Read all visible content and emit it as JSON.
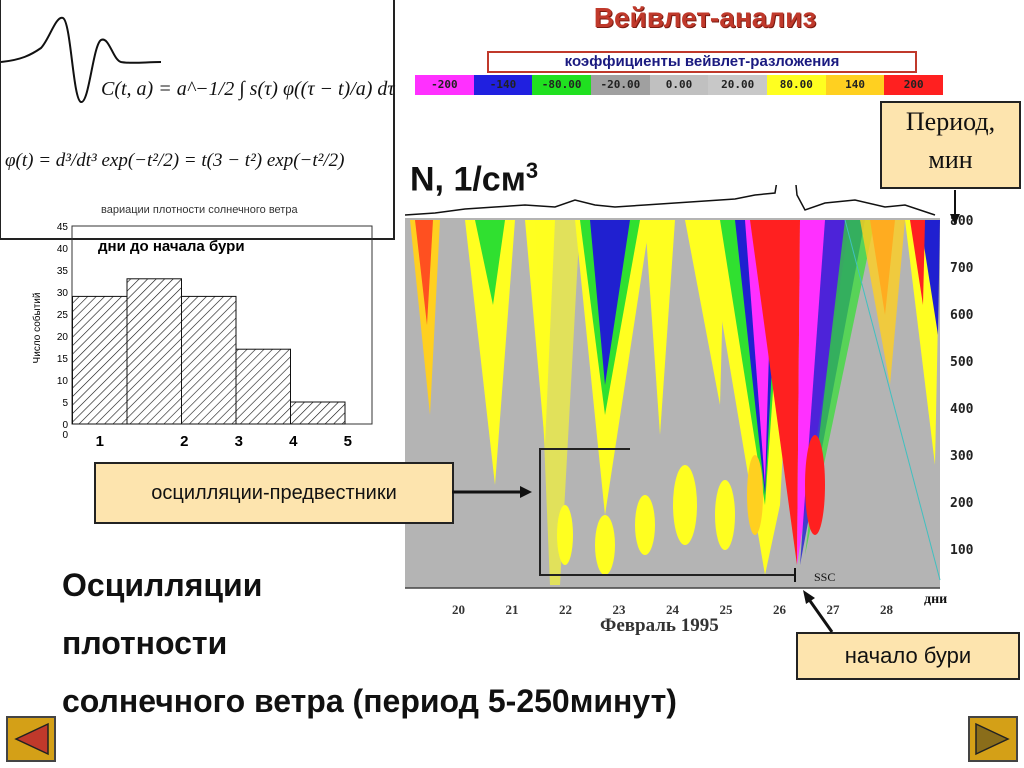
{
  "slide": {
    "title": "Вейвлет-анализ",
    "coef_label": "коэффициенты вейвлет-разложения",
    "scale": [
      {
        "label": "-200",
        "color": "#ff30ff"
      },
      {
        "label": "-140",
        "color": "#2020e0"
      },
      {
        "label": "-80.00",
        "color": "#20e020"
      },
      {
        "label": "-20.00",
        "color": "#a0a0a0"
      },
      {
        "label": "0.00",
        "color": "#c0c0c0"
      },
      {
        "label": "20.00",
        "color": "#c8c8c8"
      },
      {
        "label": "80.00",
        "color": "#ffff20"
      },
      {
        "label": "140",
        "color": "#ffd020"
      },
      {
        "label": "200",
        "color": "#ff2020"
      }
    ],
    "formulas": {
      "transform": "C(t, a) = a^−1/2 ∫ s(τ) φ((τ − t)/a) dτ",
      "wavelet": "φ(t) = d³/dt³ exp(−t²/2) = t(3 − t²) exp(−t²/2)"
    },
    "wind_caption": "вариации плотности солнечного ветра",
    "histogram": {
      "title": "дни до начала бури",
      "ylabel": "Число событий",
      "yticks": [
        "45",
        "40",
        "35",
        "30",
        "25",
        "20",
        "15",
        "10",
        "5",
        "0"
      ],
      "xzero": "0",
      "categories": [
        "1",
        "2",
        "3",
        "4",
        "5"
      ],
      "values": [
        29,
        33,
        29,
        17,
        5
      ],
      "ylim": [
        0,
        45
      ]
    },
    "density_label": "N, 1/см",
    "density_exp": "3",
    "period_box": [
      "Период,",
      "мин"
    ],
    "period_ticks": [
      "800",
      "700",
      "600",
      "500",
      "400",
      "300",
      "200",
      "100"
    ],
    "day_ticks": [
      "20",
      "21",
      "22",
      "23",
      "24",
      "25",
      "26",
      "27",
      "28"
    ],
    "dni": "дни",
    "month": "Февраль 1995",
    "ssc": "SSC",
    "osc_box": "осцилляции-предвестники",
    "storm_box": "начало бури",
    "heading": [
      "Осцилляции",
      "плотности",
      "солнечного ветра (период 5-250минут)"
    ]
  }
}
